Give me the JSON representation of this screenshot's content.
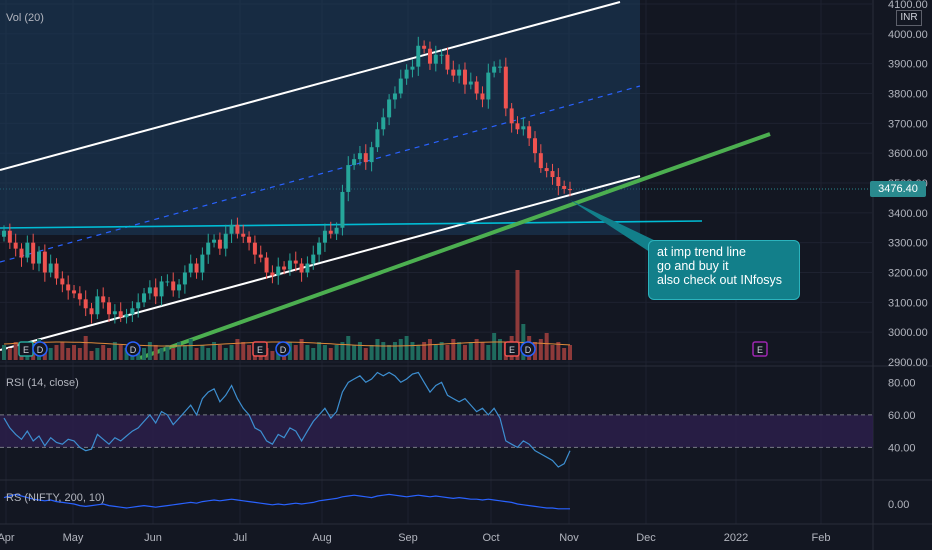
{
  "chart_data": [
    {
      "type": "candlestick",
      "pane": "price",
      "currency": "INR",
      "last_price_label": "3476.40",
      "ylim": [
        2900,
        4100
      ],
      "yticks": [
        "4100.00",
        "4000.00",
        "3900.00",
        "3800.00",
        "3700.00",
        "3600.00",
        "3500.00",
        "3400.00",
        "3300.00",
        "3200.00",
        "3100.00",
        "3000.00",
        "2900.00"
      ],
      "x_ticks": [
        "Apr",
        "May",
        "Jun",
        "Jul",
        "Aug",
        "Sep",
        "Oct",
        "Nov",
        "Dec",
        "2022",
        "Feb"
      ],
      "closes": [
        3340,
        3300,
        3280,
        3250,
        3300,
        3230,
        3270,
        3200,
        3230,
        3180,
        3160,
        3140,
        3130,
        3110,
        3080,
        3060,
        3120,
        3100,
        3060,
        3070,
        3050,
        3060,
        3080,
        3100,
        3130,
        3150,
        3120,
        3170,
        3170,
        3140,
        3160,
        3200,
        3230,
        3200,
        3260,
        3300,
        3310,
        3280,
        3330,
        3360,
        3330,
        3320,
        3300,
        3260,
        3250,
        3200,
        3190,
        3220,
        3210,
        3240,
        3230,
        3200,
        3230,
        3260,
        3300,
        3340,
        3330,
        3350,
        3470,
        3560,
        3580,
        3600,
        3570,
        3620,
        3680,
        3720,
        3780,
        3800,
        3850,
        3880,
        3890,
        3960,
        3950,
        3900,
        3930,
        3930,
        3880,
        3860,
        3880,
        3830,
        3840,
        3800,
        3780,
        3870,
        3890,
        3890,
        3750,
        3700,
        3680,
        3690,
        3650,
        3600,
        3550,
        3540,
        3520,
        3490,
        3480,
        3476
      ],
      "trend_lines": [
        {
          "name": "channel-top",
          "color": "#ffffff"
        },
        {
          "name": "channel-mid",
          "color": "#2962ff"
        },
        {
          "name": "channel-bottom",
          "color": "#ffffff"
        },
        {
          "name": "support-line",
          "color": "#00bcd4"
        },
        {
          "name": "imp-trend-line",
          "color": "#4caf50"
        }
      ],
      "annotation": [
        "at imp trend line",
        "go and buy it",
        "also check out INfosys"
      ],
      "event_markers": [
        "E",
        "D",
        "D",
        "E",
        "D",
        "E",
        "D",
        "E"
      ]
    },
    {
      "type": "bar",
      "pane": "volume",
      "title": "Vol (20)",
      "values": [
        5,
        4,
        6,
        3,
        5,
        4,
        7,
        3,
        4,
        5,
        6,
        4,
        5,
        4,
        8,
        3,
        4,
        5,
        4,
        6,
        5,
        4,
        3,
        5,
        4,
        6,
        5,
        4,
        5,
        4,
        6,
        5,
        7,
        4,
        5,
        4,
        6,
        5,
        4,
        5,
        7,
        6,
        5,
        4,
        5,
        4,
        3,
        5,
        4,
        6,
        5,
        7,
        5,
        4,
        6,
        5,
        4,
        5,
        6,
        8,
        5,
        6,
        4,
        5,
        7,
        6,
        5,
        6,
        7,
        8,
        6,
        5,
        6,
        7,
        5,
        6,
        5,
        7,
        6,
        5,
        6,
        7,
        6,
        5,
        9,
        7,
        6,
        8,
        30,
        12,
        8,
        6,
        7,
        9,
        5,
        6,
        4,
        5
      ]
    },
    {
      "type": "line",
      "pane": "indicator",
      "title": "RSI (14, close)",
      "ylim": [
        20,
        90
      ],
      "yticks": [
        "80.00",
        "60.00",
        "40.00"
      ],
      "band": [
        40,
        60
      ],
      "values": [
        58,
        52,
        48,
        45,
        50,
        44,
        47,
        41,
        46,
        43,
        42,
        45,
        44,
        40,
        38,
        39,
        48,
        45,
        42,
        46,
        44,
        47,
        50,
        52,
        56,
        60,
        55,
        62,
        60,
        54,
        58,
        62,
        66,
        60,
        70,
        74,
        76,
        68,
        72,
        78,
        70,
        64,
        60,
        52,
        50,
        44,
        42,
        48,
        46,
        52,
        50,
        44,
        50,
        56,
        60,
        64,
        58,
        62,
        74,
        80,
        82,
        84,
        80,
        82,
        86,
        84,
        86,
        84,
        80,
        82,
        85,
        86,
        80,
        74,
        78,
        80,
        72,
        70,
        68,
        70,
        66,
        62,
        64,
        60,
        64,
        58,
        44,
        42,
        40,
        44,
        42,
        38,
        36,
        34,
        32,
        28,
        30,
        38
      ]
    },
    {
      "type": "line",
      "pane": "indicator",
      "title": "RS (NIFTY, 200, 10)",
      "yticks": [
        "0.00"
      ],
      "values": [
        0.08,
        0.1,
        0.12,
        0.1,
        0.08,
        0.06,
        0.05,
        0.04,
        0.05,
        0.03,
        0.02,
        0.01,
        0.0,
        -0.02,
        -0.03,
        -0.02,
        -0.01,
        0.0,
        -0.02,
        -0.03,
        -0.04,
        -0.05,
        -0.04,
        -0.03,
        -0.02,
        -0.03,
        -0.04,
        -0.03,
        -0.02,
        -0.01,
        0.0,
        0.01,
        0.02,
        0.01,
        0.03,
        0.04,
        0.05,
        0.04,
        0.05,
        0.06,
        0.05,
        0.04,
        0.03,
        0.02,
        0.01,
        0.0,
        -0.01,
        0.0,
        -0.01,
        0.0,
        0.01,
        0.0,
        0.01,
        0.02,
        0.04,
        0.05,
        0.06,
        0.07,
        0.09,
        0.1,
        0.11,
        0.1,
        0.09,
        0.08,
        0.1,
        0.11,
        0.12,
        0.11,
        0.1,
        0.09,
        0.1,
        0.11,
        0.1,
        0.09,
        0.1,
        0.09,
        0.08,
        0.07,
        0.08,
        0.07,
        0.06,
        0.06,
        0.05,
        0.06,
        0.05,
        0.04,
        0.03,
        0.02,
        0.0,
        -0.01,
        -0.02,
        -0.03,
        -0.04,
        -0.05,
        -0.05,
        -0.06,
        -0.06,
        -0.06
      ]
    }
  ]
}
